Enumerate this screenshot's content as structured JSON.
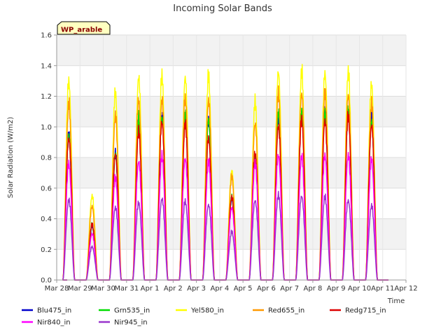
{
  "chart_data": {
    "type": "line",
    "title": "Incoming Solar Bands",
    "xlabel": "Time",
    "ylabel": "Solar Radiation (W/m2)",
    "ylim": [
      0,
      1.6
    ],
    "yticks": [
      "0.0",
      "0.2",
      "0.4",
      "0.6",
      "0.8",
      "1.0",
      "1.2",
      "1.4",
      "1.6"
    ],
    "xticks": [
      "Mar 28",
      "Mar 29",
      "Mar 30",
      "Mar 31",
      "Apr 1",
      "Apr 2",
      "Apr 3",
      "Apr 4",
      "Apr 5",
      "Apr 6",
      "Apr 7",
      "Apr 8",
      "Apr 9",
      "Apr 10",
      "Apr 11",
      "Apr 12"
    ],
    "grid": true,
    "legend_position": "bottom",
    "site_tag": "WP_arable",
    "daily_peaks": {
      "x": [
        "Mar 29",
        "Mar 30",
        "Mar 31",
        "Apr 1",
        "Apr 2",
        "Apr 3",
        "Apr 4",
        "Apr 5",
        "Apr 6",
        "Apr 7",
        "Apr 8",
        "Apr 9",
        "Apr 10",
        "Apr 11"
      ],
      "series": [
        {
          "name": "Blu475_in",
          "color": "#0000cc",
          "values": [
            0.99,
            0.37,
            0.87,
            1.1,
            1.12,
            1.12,
            1.1,
            0.56,
            0.85,
            1.12,
            1.15,
            1.15,
            1.16,
            1.1
          ]
        },
        {
          "name": "Grn535_in",
          "color": "#00dd00",
          "values": [
            1.0,
            0.38,
            0.88,
            1.11,
            1.13,
            1.13,
            1.11,
            0.57,
            0.86,
            1.15,
            1.16,
            1.16,
            1.17,
            1.1
          ]
        },
        {
          "name": "Yel580_in",
          "color": "#ffff00",
          "values": [
            1.37,
            0.58,
            1.29,
            1.4,
            1.4,
            1.4,
            1.4,
            0.76,
            1.22,
            1.44,
            1.43,
            1.43,
            1.43,
            1.35
          ]
        },
        {
          "name": "Red655_in",
          "color": "#ff9900",
          "values": [
            1.21,
            0.51,
            1.13,
            1.24,
            1.24,
            1.25,
            1.24,
            0.71,
            1.08,
            1.28,
            1.29,
            1.28,
            1.28,
            1.21
          ]
        },
        {
          "name": "Redg715_in",
          "color": "#dd0000",
          "values": [
            0.98,
            0.38,
            0.87,
            1.02,
            1.09,
            1.07,
            0.98,
            0.57,
            0.87,
            1.06,
            1.1,
            1.1,
            1.12,
            1.07
          ]
        },
        {
          "name": "Nir840_in",
          "color": "#ff00ff",
          "values": [
            0.8,
            0.32,
            0.7,
            0.82,
            0.85,
            0.84,
            0.81,
            0.5,
            0.8,
            0.86,
            0.85,
            0.86,
            0.86,
            0.83
          ]
        },
        {
          "name": "Nir945_in",
          "color": "#9933cc",
          "values": [
            0.55,
            0.23,
            0.5,
            0.53,
            0.56,
            0.54,
            0.52,
            0.33,
            0.55,
            0.58,
            0.58,
            0.57,
            0.55,
            0.51
          ]
        }
      ]
    }
  }
}
